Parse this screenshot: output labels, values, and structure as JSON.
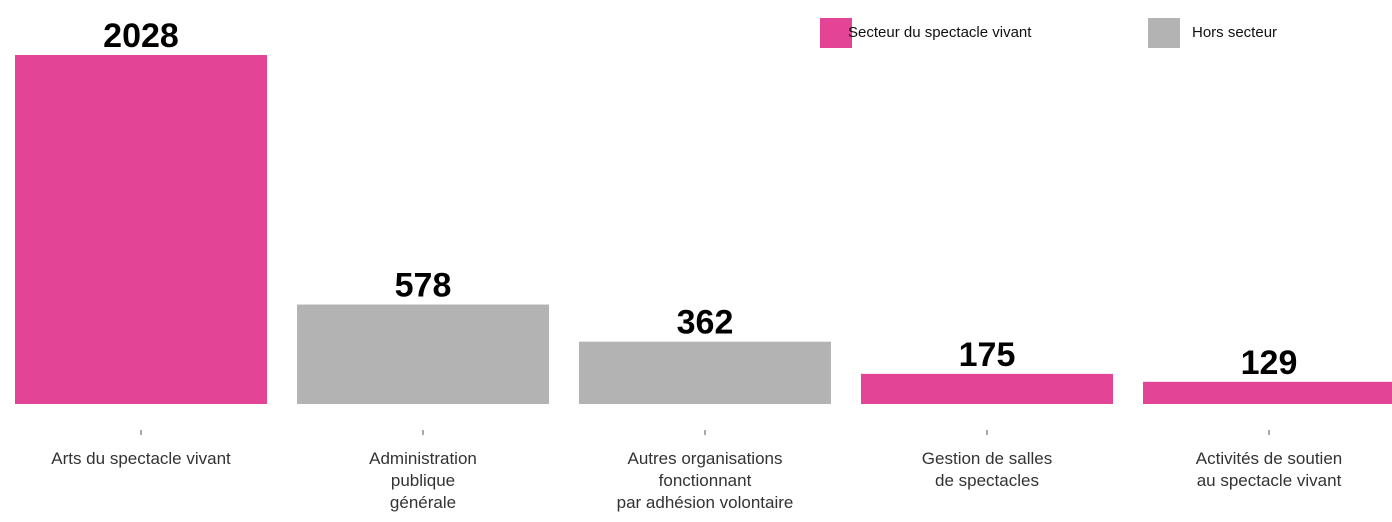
{
  "chart_data": {
    "type": "bar",
    "categories": [
      "Arts du spectacle vivant",
      "Administration\npublique\ngénérale",
      "Autres organisations\nfonctionnant\npar adhésion volontaire",
      "Gestion de salles\nde spectacles",
      "Activités de soutien\nau spectacle vivant"
    ],
    "series": [
      {
        "name": "Secteur du spectacle vivant",
        "color": "#e44495",
        "values": [
          2028,
          null,
          null,
          175,
          129
        ]
      },
      {
        "name": "Hors secteur",
        "color": "#b3b3b3",
        "values": [
          null,
          578,
          362,
          null,
          null
        ]
      }
    ],
    "legend": "top-right"
  }
}
